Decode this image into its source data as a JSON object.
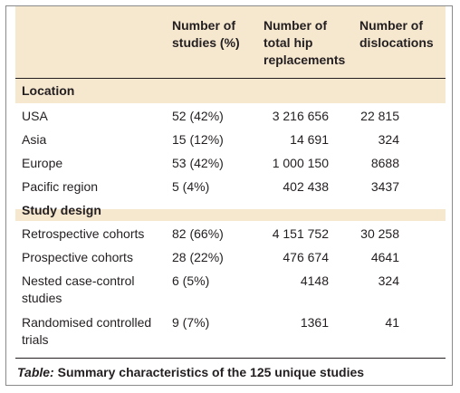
{
  "table": {
    "headers": [
      "Number of studies (%)",
      "Number of total hip replacements",
      "Number of dislocations"
    ],
    "sections": [
      {
        "title": "Location",
        "rows": [
          {
            "label": "USA",
            "studies": "52 (42%)",
            "replacements": "3 216 656",
            "dislocations": "22 815"
          },
          {
            "label": "Asia",
            "studies": "15 (12%)",
            "replacements": "14 691",
            "dislocations": "324"
          },
          {
            "label": "Europe",
            "studies": "53 (42%)",
            "replacements": "1 000 150",
            "dislocations": "8688"
          },
          {
            "label": "Pacific region",
            "studies": "5 (4%)",
            "replacements": "402 438",
            "dislocations": "3437"
          }
        ]
      },
      {
        "title": "Study design",
        "rows": [
          {
            "label": "Retrospective cohorts",
            "studies": "82 (66%)",
            "replacements": "4 151 752",
            "dislocations": "30 258"
          },
          {
            "label": "Prospective cohorts",
            "studies": "28 (22%)",
            "replacements": "476 674",
            "dislocations": "4641"
          },
          {
            "label": "Nested case-control studies",
            "studies": "6 (5%)",
            "replacements": "4148",
            "dislocations": "324"
          },
          {
            "label": "Randomised controlled trials",
            "studies": "9 (7%)",
            "replacements": "1361",
            "dislocations": "41"
          }
        ]
      }
    ]
  },
  "caption": {
    "prefix": "Table:",
    "text": "Summary characteristics of the 125 unique studies"
  },
  "colors": {
    "tint": "#f6e7cf",
    "text": "#231f20",
    "border": "#8a8a8a"
  }
}
